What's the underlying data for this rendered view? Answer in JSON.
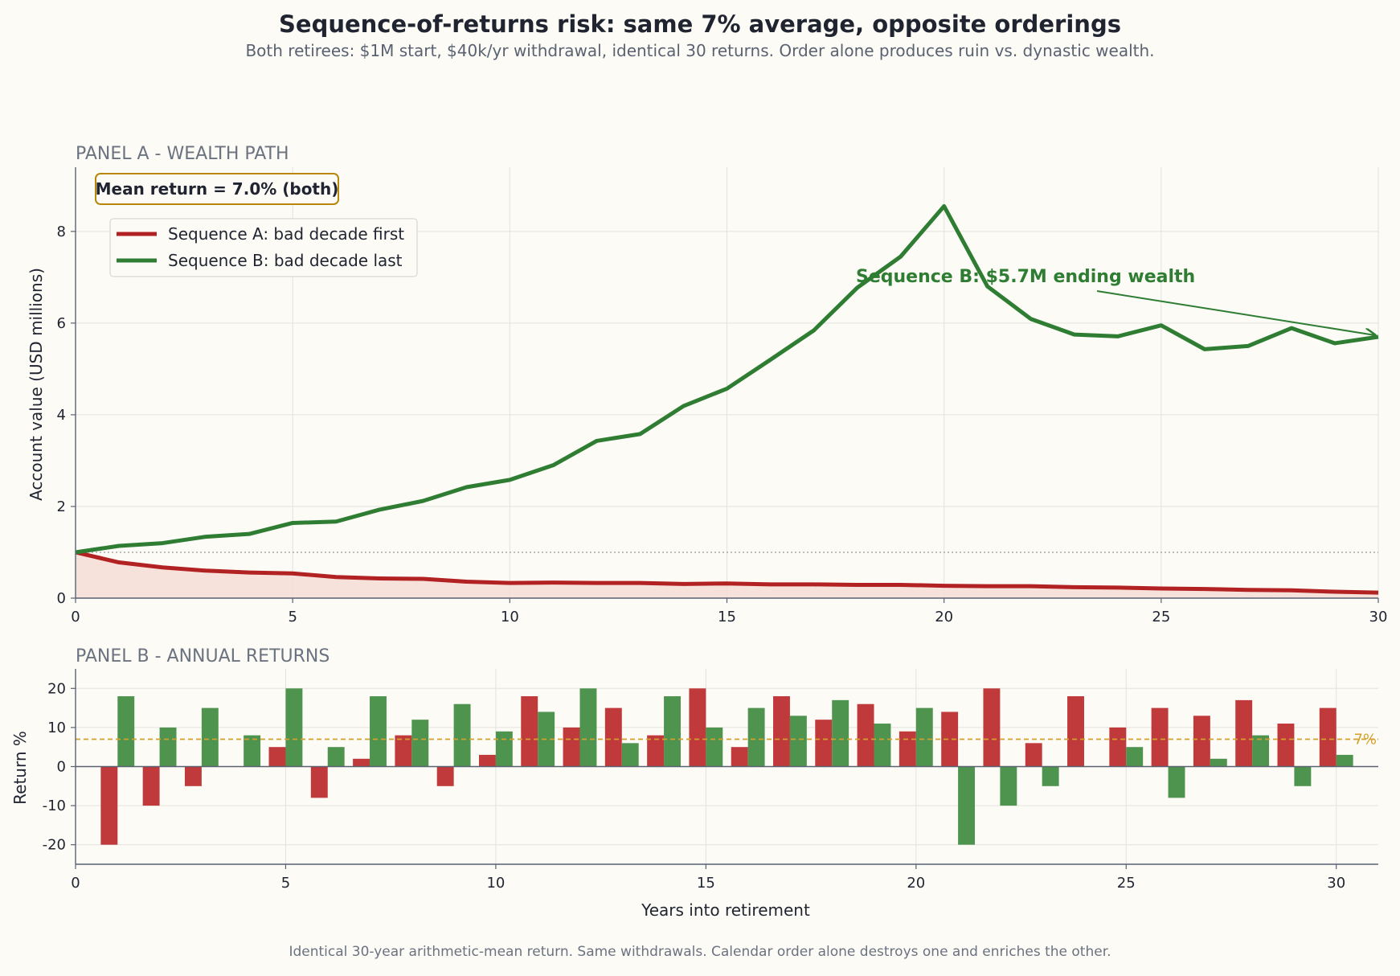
{
  "header": {
    "title": "Sequence-of-returns risk: same 7% average, opposite orderings",
    "subtitle": "Both retirees: $1M start, $40k/yr withdrawal, identical 30 returns. Order alone produces ruin vs. dynastic wealth."
  },
  "footer": {
    "caption": "Identical 30-year arithmetic-mean return. Same withdrawals. Calendar order alone destroys one and enriches the other."
  },
  "colors": {
    "background": "#fcfbf6",
    "seq_a": "#b22222",
    "seq_b": "#2e7d32",
    "seq_a_fill": "#f5dcd6",
    "bar_a": "#c0393b",
    "bar_b": "#4e944f",
    "mean_line": "#d4a02c",
    "badge_border": "#b8860b",
    "panel_title": "#6b7280",
    "grid": "#e4e2dc"
  },
  "chart_data": [
    {
      "type": "line",
      "panel_title": "PANEL A - WEALTH PATH",
      "badge": "Mean return = 7.0% (both)",
      "xlabel": "",
      "ylabel": "Account value (USD millions)",
      "xlim": [
        0,
        30
      ],
      "ylim": [
        0,
        9.4
      ],
      "xticks": [
        0,
        5,
        10,
        15,
        20,
        25,
        30
      ],
      "yticks": [
        0,
        2,
        4,
        6,
        8
      ],
      "grid": true,
      "legend_position": "upper-left",
      "reference_line": {
        "y": 1.0,
        "style": "dotted"
      },
      "x": [
        0,
        1,
        2,
        3,
        4,
        5,
        6,
        7,
        8,
        9,
        10,
        11,
        12,
        13,
        14,
        15,
        16,
        17,
        18,
        19,
        20,
        21,
        22,
        23,
        24,
        25,
        26,
        27,
        28,
        29,
        30
      ],
      "series": [
        {
          "name": "Sequence A: bad decade first",
          "values": [
            1.0,
            0.78,
            0.67,
            0.6,
            0.56,
            0.54,
            0.46,
            0.43,
            0.42,
            0.36,
            0.33,
            0.34,
            0.33,
            0.33,
            0.31,
            0.32,
            0.3,
            0.3,
            0.29,
            0.29,
            0.27,
            0.26,
            0.26,
            0.24,
            0.23,
            0.21,
            0.2,
            0.18,
            0.17,
            0.14,
            0.12
          ],
          "fill": true
        },
        {
          "name": "Sequence B: bad decade last",
          "values": [
            1.0,
            1.14,
            1.2,
            1.34,
            1.4,
            1.64,
            1.67,
            1.93,
            2.12,
            2.42,
            2.58,
            2.9,
            3.43,
            3.58,
            4.19,
            4.57,
            5.2,
            5.84,
            6.77,
            7.45,
            8.55,
            6.8,
            6.09,
            5.75,
            5.71,
            5.95,
            5.43,
            5.5,
            5.89,
            5.56,
            5.7
          ]
        }
      ],
      "annotation": {
        "text": "Sequence B: $5.7M ending wealth",
        "x": 30,
        "y": 5.7
      }
    },
    {
      "type": "bar",
      "panel_title": "PANEL B - ANNUAL RETURNS",
      "xlabel": "Years into retirement",
      "ylabel": "Return %",
      "xlim": [
        0,
        31
      ],
      "ylim": [
        -25,
        25
      ],
      "xticks": [
        0,
        5,
        10,
        15,
        20,
        25,
        30
      ],
      "yticks": [
        -20,
        -10,
        0,
        10,
        20
      ],
      "grid": true,
      "mean_line": {
        "y": 7,
        "label": "7%"
      },
      "x": [
        1,
        2,
        3,
        4,
        5,
        6,
        7,
        8,
        9,
        10,
        11,
        12,
        13,
        14,
        15,
        16,
        17,
        18,
        19,
        20,
        21,
        22,
        23,
        24,
        25,
        26,
        27,
        28,
        29,
        30
      ],
      "series": [
        {
          "values": [
            -20,
            -10,
            -5,
            0,
            5,
            -8,
            2,
            8,
            -5,
            3,
            18,
            10,
            15,
            8,
            20,
            5,
            18,
            12,
            16,
            9,
            14,
            20,
            6,
            18,
            10,
            15,
            13,
            17,
            11,
            15
          ]
        },
        {
          "values": [
            18,
            10,
            15,
            8,
            20,
            5,
            18,
            12,
            16,
            9,
            14,
            20,
            6,
            18,
            10,
            15,
            13,
            17,
            11,
            15,
            -20,
            -10,
            -5,
            0,
            5,
            -8,
            2,
            8,
            -5,
            3
          ]
        }
      ]
    }
  ]
}
